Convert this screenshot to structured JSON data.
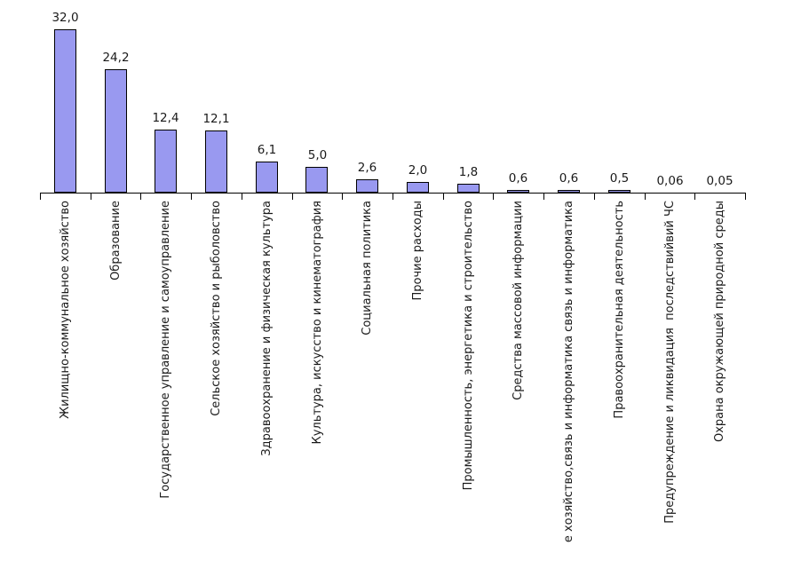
{
  "chart_data": {
    "type": "bar",
    "title": "",
    "xlabel": "",
    "ylabel": "",
    "categories": [
      "Жилищно-коммунальное хозяйство",
      "Образование",
      "Государственное управление и самоуправление",
      "Сельское хозяйство и рыболовство",
      "Здравоохранение и физическая культура",
      "Культура, искусство и кинематография",
      "Социальная политика",
      "Прочие расходы",
      "Промышленность, энергетика и строительство",
      "Средства массовой информации",
      "е хозяйство,связь и информатика связь и информатика",
      "Правоохранительная деятельность",
      "Предупреждение и ликвидация  последствийвий ЧС",
      "Охрана окружающей природной среды"
    ],
    "values": [
      32.0,
      24.2,
      12.4,
      12.1,
      6.1,
      5.0,
      2.6,
      2.0,
      1.8,
      0.6,
      0.6,
      0.5,
      0.06,
      0.05
    ],
    "value_labels": [
      "32,0",
      "24,2",
      "12,4",
      "12,1",
      "6,1",
      "5,0",
      "2,6",
      "2,0",
      "1,8",
      "0,6",
      "0,6",
      "0,5",
      "0,06",
      "0,05"
    ],
    "ylim": [
      0,
      34
    ],
    "grid": false,
    "legend": null,
    "data_labels_shown": true,
    "bar_color": "#9999F0",
    "bar_border_color": "#000000",
    "axis_color": "#000000",
    "text_color": "#1A1A1A",
    "background": "#FFFFFF"
  }
}
